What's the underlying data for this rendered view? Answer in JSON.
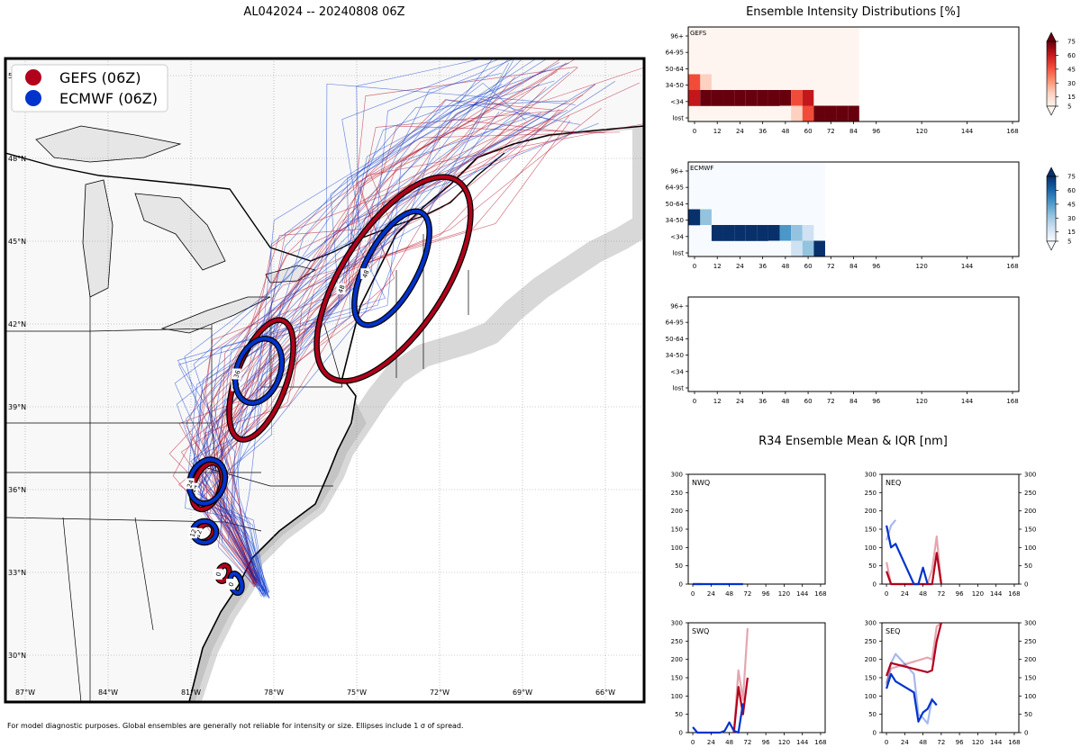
{
  "colors": {
    "gefs": "#b2001c",
    "ecmwf": "#0033cc",
    "land": "#f7f7f7",
    "water": "#ffffff",
    "lake": "#e6e6e6",
    "gefs_scale": [
      "#fff5f0",
      "#fdd0bf",
      "#fc8f6f",
      "#f14c3a",
      "#c3171b",
      "#67000d"
    ],
    "ecmwf_scale": [
      "#f7fbff",
      "#cfe1f2",
      "#93c3df",
      "#4a97c9",
      "#1764ab",
      "#08306b"
    ]
  },
  "chart_data": [
    {
      "type": "map",
      "title": "AL042024 -- 20240808 06Z",
      "legend": [
        "GEFS (06Z)",
        "ECMWF (06Z)"
      ],
      "lat_labels": [
        "51°N",
        "48°N",
        "45°N",
        "42°N",
        "39°N",
        "36°N",
        "33°N",
        "30°N"
      ],
      "lon_labels": [
        "87°W",
        "84°W",
        "81°W",
        "78°W",
        "75°W",
        "72°W",
        "69°W",
        "66°W"
      ],
      "gefs_track": [
        [
          -78.6,
          32.6
        ],
        [
          -79.8,
          35.2
        ],
        [
          -80.6,
          37.3
        ],
        [
          -78.7,
          40.2
        ],
        [
          -75.8,
          43.6
        ],
        [
          -72.3,
          47.7
        ]
      ],
      "ecmwf_track": [
        [
          -78.3,
          32.2
        ],
        [
          -79.4,
          34.4
        ],
        [
          -80.0,
          36.4
        ],
        [
          -79.8,
          39.6
        ],
        [
          -76.2,
          44.3
        ],
        [
          -73.2,
          48.2
        ]
      ],
      "ellipse_labels": [
        {
          "model": "gefs",
          "label": "0"
        },
        {
          "model": "ecmwf",
          "label": "0"
        },
        {
          "model": "gefs",
          "label": "12"
        },
        {
          "model": "ecmwf",
          "label": "12"
        },
        {
          "model": "gefs",
          "label": "24"
        },
        {
          "model": "ecmwf",
          "label": "24"
        },
        {
          "model": "gefs",
          "label": "36"
        },
        {
          "model": "ecmwf",
          "label": "36"
        },
        {
          "model": "gefs",
          "label": "48"
        },
        {
          "model": "ecmwf",
          "label": "48"
        }
      ],
      "footnote": "For model diagnostic purposes. Global ensembles are generally not reliable for intensity or size. Ellipses include 1 σ of spread."
    },
    {
      "type": "heatmap",
      "title": "Ensemble Intensity Distributions [%]",
      "rows": [
        "96+",
        "64-95",
        "50-64",
        "34-50",
        "<34",
        "lost"
      ],
      "x_ticks": [
        0,
        12,
        24,
        36,
        48,
        60,
        72,
        84,
        96,
        120,
        144,
        168
      ],
      "x_step_hours": 6,
      "panels": [
        {
          "name": "GEFS",
          "max_lead": 84,
          "values": [
            [
              0,
              0,
              0,
              0,
              0,
              0,
              0,
              0,
              0,
              0,
              0,
              0,
              0,
              0,
              0
            ],
            [
              0,
              0,
              0,
              0,
              0,
              0,
              0,
              0,
              0,
              0,
              0,
              0,
              0,
              0,
              0
            ],
            [
              0,
              0,
              0,
              0,
              0,
              0,
              0,
              0,
              0,
              0,
              0,
              0,
              0,
              0,
              0
            ],
            [
              48,
              18,
              0,
              0,
              0,
              0,
              0,
              0,
              0,
              0,
              0,
              0,
              0,
              0,
              0
            ],
            [
              65,
              82,
              82,
              82,
              82,
              82,
              82,
              82,
              82,
              56,
              62,
              12,
              12,
              7,
              0
            ],
            [
              0,
              0,
              0,
              0,
              0,
              0,
              0,
              0,
              8,
              22,
              45,
              80,
              82,
              82,
              82
            ]
          ]
        },
        {
          "name": "ECMWF",
          "max_lead": 66,
          "values": [
            [
              0,
              0,
              0,
              0,
              0,
              0,
              0,
              0,
              0,
              0,
              0,
              0
            ],
            [
              0,
              0,
              0,
              0,
              0,
              0,
              0,
              0,
              0,
              0,
              0,
              0
            ],
            [
              0,
              0,
              0,
              0,
              0,
              0,
              0,
              0,
              0,
              0,
              0,
              0
            ],
            [
              88,
              30,
              0,
              0,
              0,
              0,
              0,
              0,
              0,
              0,
              0,
              0
            ],
            [
              0,
              12,
              82,
              82,
              82,
              82,
              82,
              82,
              56,
              42,
              22,
              7
            ],
            [
              0,
              0,
              0,
              0,
              0,
              0,
              0,
              6,
              12,
              20,
              40,
              82
            ]
          ]
        },
        {
          "name": "",
          "max_lead": 0,
          "values": []
        }
      ],
      "colorbar_ticks": [
        75,
        60,
        45,
        30,
        15,
        5
      ]
    },
    {
      "type": "line",
      "title": "R34 Ensemble Mean & IQR [nm]",
      "x_ticks": [
        0,
        24,
        48,
        72,
        96,
        120,
        144,
        168
      ],
      "y_ticks": [
        0,
        50,
        100,
        150,
        200,
        250,
        300
      ],
      "ylim": [
        0,
        300
      ],
      "xlim": [
        -6,
        174
      ],
      "panels": [
        {
          "name": "NWQ",
          "gefs_mean": [
            [
              0,
              0
            ],
            [
              6,
              0
            ],
            [
              12,
              0
            ]
          ],
          "ecmwf_mean": [
            [
              0,
              0
            ],
            [
              6,
              0
            ],
            [
              12,
              0
            ],
            [
              42,
              0
            ],
            [
              48,
              0
            ],
            [
              54,
              0
            ],
            [
              60,
              0
            ],
            [
              66,
              0
            ]
          ],
          "gefs_band": [],
          "ecmwf_band": []
        },
        {
          "name": "NEQ",
          "gefs_mean": [
            [
              0,
              35
            ],
            [
              6,
              0
            ],
            [
              54,
              0
            ],
            [
              60,
              0
            ],
            [
              66,
              85
            ],
            [
              72,
              0
            ]
          ],
          "ecmwf_mean": [
            [
              0,
              160
            ],
            [
              6,
              100
            ],
            [
              12,
              110
            ],
            [
              36,
              0
            ],
            [
              42,
              0
            ],
            [
              48,
              45
            ],
            [
              54,
              0
            ]
          ],
          "gefs_band": [
            [
              0,
              60
            ],
            [
              6,
              0
            ],
            [
              54,
              0
            ],
            [
              60,
              40
            ],
            [
              66,
              130
            ],
            [
              72,
              0
            ]
          ],
          "ecmwf_band": [
            [
              0,
              120
            ],
            [
              6,
              160
            ],
            [
              12,
              175
            ]
          ]
        },
        {
          "name": "SWQ",
          "gefs_mean": [
            [
              54,
              0
            ],
            [
              60,
              125
            ],
            [
              66,
              50
            ],
            [
              72,
              150
            ]
          ],
          "ecmwf_mean": [
            [
              0,
              15
            ],
            [
              6,
              0
            ],
            [
              36,
              0
            ],
            [
              42,
              5
            ],
            [
              48,
              28
            ],
            [
              54,
              5
            ],
            [
              60,
              0
            ],
            [
              66,
              80
            ]
          ],
          "gefs_band": [
            [
              54,
              0
            ],
            [
              60,
              170
            ],
            [
              66,
              90
            ],
            [
              72,
              285
            ]
          ],
          "ecmwf_band": []
        },
        {
          "name": "SEQ",
          "gefs_mean": [
            [
              0,
              155
            ],
            [
              6,
              190
            ],
            [
              54,
              165
            ],
            [
              60,
              170
            ],
            [
              66,
              250
            ],
            [
              72,
              300
            ]
          ],
          "ecmwf_mean": [
            [
              0,
              120
            ],
            [
              6,
              160
            ],
            [
              12,
              140
            ],
            [
              36,
              110
            ],
            [
              42,
              30
            ],
            [
              48,
              55
            ],
            [
              54,
              65
            ],
            [
              60,
              90
            ],
            [
              66,
              75
            ]
          ],
          "gefs_band": [
            [
              0,
              135
            ],
            [
              6,
              175
            ],
            [
              54,
              205
            ],
            [
              60,
              200
            ],
            [
              66,
              290
            ],
            [
              72,
              300
            ]
          ],
          "ecmwf_band": [
            [
              0,
              130
            ],
            [
              6,
              190
            ],
            [
              12,
              215
            ],
            [
              36,
              160
            ],
            [
              42,
              50
            ],
            [
              48,
              40
            ],
            [
              54,
              25
            ],
            [
              60,
              95
            ]
          ]
        }
      ]
    }
  ]
}
